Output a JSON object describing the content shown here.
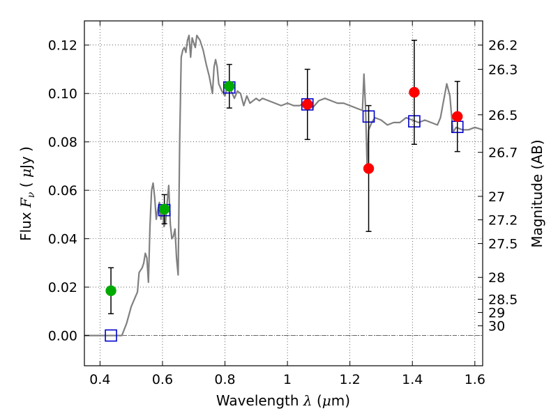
{
  "chart_data": {
    "type": "scatter",
    "xlim": [
      0.35,
      1.625
    ],
    "ylim": [
      -0.0125,
      0.13
    ],
    "grid": true,
    "xlabel": "Wavelength  λ (μm)",
    "ylabel": "Flux  Fν  ( μJy )",
    "y2label": "Magnitude (AB)",
    "x_ticks": [
      {
        "value": 0.4,
        "label": "0.4"
      },
      {
        "value": 0.6,
        "label": "0.6"
      },
      {
        "value": 0.8,
        "label": "0.8"
      },
      {
        "value": 1.0,
        "label": "1"
      },
      {
        "value": 1.2,
        "label": "1.2"
      },
      {
        "value": 1.4,
        "label": "1.4"
      },
      {
        "value": 1.6,
        "label": "1.6"
      }
    ],
    "y_ticks": [
      {
        "value": 0.0,
        "label": "0.00"
      },
      {
        "value": 0.02,
        "label": "0.02"
      },
      {
        "value": 0.04,
        "label": "0.04"
      },
      {
        "value": 0.06,
        "label": "0.06"
      },
      {
        "value": 0.08,
        "label": "0.08"
      },
      {
        "value": 0.1,
        "label": "0.10"
      },
      {
        "value": 0.12,
        "label": "0.12"
      }
    ],
    "y2_ticks": [
      {
        "flux": 0.12,
        "label": "26.2"
      },
      {
        "flux": 0.11,
        "label": "26.3"
      },
      {
        "flux": 0.0912,
        "label": "26.5"
      },
      {
        "flux": 0.0757,
        "label": "26.7"
      },
      {
        "flux": 0.0575,
        "label": "27"
      },
      {
        "flux": 0.0478,
        "label": "27.2"
      },
      {
        "flux": 0.038,
        "label": "27.5"
      },
      {
        "flux": 0.024,
        "label": "28"
      },
      {
        "flux": 0.015,
        "label": "28.5"
      },
      {
        "flux": 0.0095,
        "label": "29"
      },
      {
        "flux": 0.004,
        "label": "30"
      }
    ],
    "series": [
      {
        "name": "model_spectrum",
        "kind": "line",
        "color": "#808080",
        "x": [
          0.35,
          0.47,
          0.485,
          0.5,
          0.52,
          0.525,
          0.53,
          0.535,
          0.54,
          0.545,
          0.55,
          0.555,
          0.56,
          0.565,
          0.57,
          0.575,
          0.58,
          0.585,
          0.59,
          0.595,
          0.6,
          0.605,
          0.61,
          0.615,
          0.62,
          0.625,
          0.63,
          0.635,
          0.64,
          0.645,
          0.65,
          0.655,
          0.66,
          0.665,
          0.67,
          0.675,
          0.68,
          0.685,
          0.69,
          0.695,
          0.7,
          0.705,
          0.71,
          0.72,
          0.73,
          0.74,
          0.75,
          0.76,
          0.765,
          0.77,
          0.775,
          0.78,
          0.79,
          0.8,
          0.81,
          0.82,
          0.83,
          0.84,
          0.85,
          0.86,
          0.87,
          0.88,
          0.89,
          0.9,
          0.91,
          0.92,
          0.94,
          0.96,
          0.98,
          1.0,
          1.02,
          1.04,
          1.06,
          1.08,
          1.1,
          1.12,
          1.14,
          1.16,
          1.18,
          1.2,
          1.22,
          1.24,
          1.245,
          1.25,
          1.255,
          1.26,
          1.27,
          1.28,
          1.3,
          1.32,
          1.34,
          1.36,
          1.38,
          1.4,
          1.42,
          1.44,
          1.46,
          1.48,
          1.49,
          1.5,
          1.51,
          1.52,
          1.53,
          1.54,
          1.56,
          1.58,
          1.6,
          1.625
        ],
        "y": [
          0.0,
          0.0,
          0.005,
          0.012,
          0.018,
          0.026,
          0.027,
          0.028,
          0.03,
          0.034,
          0.032,
          0.022,
          0.045,
          0.06,
          0.063,
          0.057,
          0.048,
          0.052,
          0.055,
          0.048,
          0.052,
          0.045,
          0.047,
          0.055,
          0.062,
          0.046,
          0.04,
          0.041,
          0.044,
          0.032,
          0.025,
          0.08,
          0.115,
          0.118,
          0.119,
          0.117,
          0.122,
          0.124,
          0.115,
          0.123,
          0.121,
          0.119,
          0.124,
          0.122,
          0.118,
          0.112,
          0.107,
          0.1,
          0.111,
          0.114,
          0.111,
          0.104,
          0.101,
          0.099,
          0.104,
          0.101,
          0.098,
          0.101,
          0.1,
          0.095,
          0.099,
          0.096,
          0.097,
          0.098,
          0.097,
          0.098,
          0.097,
          0.096,
          0.095,
          0.096,
          0.095,
          0.095,
          0.097,
          0.094,
          0.097,
          0.098,
          0.097,
          0.096,
          0.096,
          0.095,
          0.094,
          0.093,
          0.108,
          0.094,
          0.07,
          0.085,
          0.088,
          0.09,
          0.089,
          0.087,
          0.088,
          0.088,
          0.09,
          0.089,
          0.088,
          0.089,
          0.088,
          0.087,
          0.09,
          0.097,
          0.104,
          0.099,
          0.084,
          0.086,
          0.085,
          0.085,
          0.086,
          0.085
        ]
      },
      {
        "name": "model_band_flux",
        "kind": "marker",
        "marker": "open-square",
        "color": "#0000cc",
        "x": [
          0.435,
          0.606,
          0.814,
          1.064,
          1.26,
          1.406,
          1.544
        ],
        "y": [
          0.0,
          0.0518,
          0.1025,
          0.0955,
          0.0905,
          0.0885,
          0.0862
        ]
      },
      {
        "name": "observed_optical",
        "kind": "marker",
        "marker": "filled-circle",
        "color": "#00aa00",
        "x": [
          0.435,
          0.606,
          0.814
        ],
        "y": [
          0.0185,
          0.0522,
          0.103
        ],
        "yerr": [
          0.0095,
          0.006,
          0.009
        ]
      },
      {
        "name": "observed_infrared",
        "kind": "marker",
        "marker": "filled-circle",
        "color": "#ff0000",
        "x": [
          1.064,
          1.26,
          1.406,
          1.544
        ],
        "y": [
          0.0955,
          0.069,
          0.1005,
          0.0905
        ],
        "yerr": [
          0.0145,
          0.026,
          0.0215,
          0.0145
        ]
      }
    ]
  }
}
